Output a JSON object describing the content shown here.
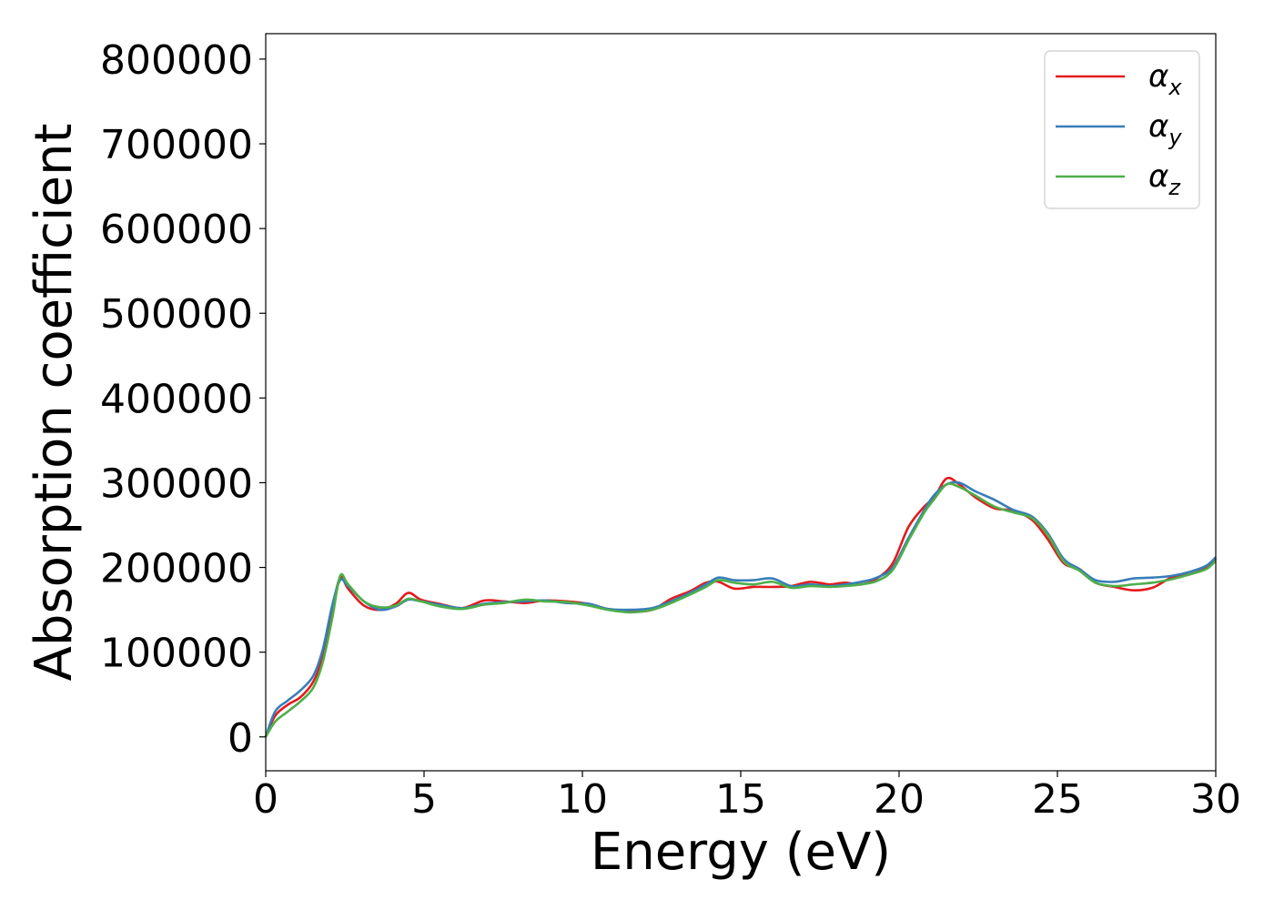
{
  "chart_data": {
    "type": "line",
    "xlabel": "Energy (eV)",
    "ylabel": "Absorption coefficient",
    "xlim": [
      0,
      30
    ],
    "ylim": [
      -40000,
      830000
    ],
    "x_ticks": [
      0,
      5,
      10,
      15,
      20,
      25,
      30
    ],
    "y_ticks": [
      0,
      100000,
      200000,
      300000,
      400000,
      500000,
      600000,
      700000,
      800000
    ],
    "grid": false,
    "legend_position": "top-right",
    "series": [
      {
        "name": "α",
        "subscript": "x",
        "color": "#e41a1c",
        "points": [
          [
            0,
            0
          ],
          [
            0.3,
            25000
          ],
          [
            0.7,
            38000
          ],
          [
            1.1,
            47000
          ],
          [
            1.5,
            65000
          ],
          [
            1.8,
            95000
          ],
          [
            2.1,
            150000
          ],
          [
            2.35,
            188000
          ],
          [
            2.6,
            175000
          ],
          [
            3.1,
            155000
          ],
          [
            3.6,
            150000
          ],
          [
            4.1,
            157000
          ],
          [
            4.5,
            170000
          ],
          [
            4.9,
            162000
          ],
          [
            5.5,
            157000
          ],
          [
            6.2,
            152000
          ],
          [
            6.9,
            161000
          ],
          [
            7.5,
            160000
          ],
          [
            8.2,
            158000
          ],
          [
            8.8,
            161000
          ],
          [
            9.5,
            160000
          ],
          [
            10.2,
            157000
          ],
          [
            10.8,
            151000
          ],
          [
            11.5,
            148000
          ],
          [
            12.2,
            150000
          ],
          [
            12.8,
            163000
          ],
          [
            13.4,
            172000
          ],
          [
            13.9,
            182000
          ],
          [
            14.3,
            183000
          ],
          [
            14.8,
            175000
          ],
          [
            15.4,
            177000
          ],
          [
            16.0,
            177000
          ],
          [
            16.6,
            178000
          ],
          [
            17.2,
            183000
          ],
          [
            17.8,
            180000
          ],
          [
            18.3,
            182000
          ],
          [
            18.8,
            180000
          ],
          [
            19.3,
            187000
          ],
          [
            19.8,
            205000
          ],
          [
            20.3,
            248000
          ],
          [
            20.8,
            272000
          ],
          [
            21.1,
            282000
          ],
          [
            21.5,
            305000
          ],
          [
            21.9,
            298000
          ],
          [
            22.4,
            283000
          ],
          [
            23.0,
            270000
          ],
          [
            23.6,
            267000
          ],
          [
            24.2,
            256000
          ],
          [
            24.7,
            233000
          ],
          [
            25.2,
            205000
          ],
          [
            25.7,
            198000
          ],
          [
            26.2,
            182000
          ],
          [
            26.8,
            177000
          ],
          [
            27.4,
            173000
          ],
          [
            28.0,
            176000
          ],
          [
            28.6,
            188000
          ],
          [
            29.2,
            192000
          ],
          [
            29.7,
            200000
          ],
          [
            30,
            211000
          ]
        ]
      },
      {
        "name": "α",
        "subscript": "y",
        "color": "#377eb8",
        "points": [
          [
            0,
            0
          ],
          [
            0.3,
            30000
          ],
          [
            0.7,
            43000
          ],
          [
            1.1,
            55000
          ],
          [
            1.5,
            72000
          ],
          [
            1.8,
            103000
          ],
          [
            2.1,
            155000
          ],
          [
            2.35,
            185000
          ],
          [
            2.6,
            178000
          ],
          [
            3.1,
            160000
          ],
          [
            3.6,
            150000
          ],
          [
            4.1,
            154000
          ],
          [
            4.5,
            162000
          ],
          [
            4.9,
            160000
          ],
          [
            5.5,
            156000
          ],
          [
            6.2,
            152000
          ],
          [
            6.9,
            157000
          ],
          [
            7.5,
            159000
          ],
          [
            8.2,
            160000
          ],
          [
            8.8,
            161000
          ],
          [
            9.5,
            158000
          ],
          [
            10.2,
            157000
          ],
          [
            10.8,
            151000
          ],
          [
            11.5,
            150000
          ],
          [
            12.2,
            152000
          ],
          [
            12.8,
            160000
          ],
          [
            13.4,
            170000
          ],
          [
            13.9,
            180000
          ],
          [
            14.3,
            188000
          ],
          [
            14.8,
            185000
          ],
          [
            15.4,
            185000
          ],
          [
            16.0,
            187000
          ],
          [
            16.6,
            178000
          ],
          [
            17.2,
            180000
          ],
          [
            17.8,
            178000
          ],
          [
            18.3,
            180000
          ],
          [
            18.8,
            183000
          ],
          [
            19.3,
            188000
          ],
          [
            19.8,
            200000
          ],
          [
            20.3,
            235000
          ],
          [
            20.8,
            268000
          ],
          [
            21.1,
            285000
          ],
          [
            21.5,
            298000
          ],
          [
            21.9,
            300000
          ],
          [
            22.4,
            290000
          ],
          [
            23.0,
            280000
          ],
          [
            23.6,
            268000
          ],
          [
            24.2,
            260000
          ],
          [
            24.7,
            240000
          ],
          [
            25.2,
            210000
          ],
          [
            25.7,
            198000
          ],
          [
            26.2,
            185000
          ],
          [
            26.8,
            183000
          ],
          [
            27.4,
            187000
          ],
          [
            28.0,
            188000
          ],
          [
            28.6,
            190000
          ],
          [
            29.2,
            195000
          ],
          [
            29.7,
            202000
          ],
          [
            30,
            212000
          ]
        ]
      },
      {
        "name": "α",
        "subscript": "z",
        "color": "#4daf4a",
        "points": [
          [
            0,
            0
          ],
          [
            0.3,
            18000
          ],
          [
            0.7,
            30000
          ],
          [
            1.1,
            42000
          ],
          [
            1.5,
            58000
          ],
          [
            1.8,
            88000
          ],
          [
            2.1,
            140000
          ],
          [
            2.35,
            190000
          ],
          [
            2.6,
            180000
          ],
          [
            3.1,
            160000
          ],
          [
            3.6,
            153000
          ],
          [
            4.1,
            155000
          ],
          [
            4.5,
            163000
          ],
          [
            4.9,
            160000
          ],
          [
            5.5,
            154000
          ],
          [
            6.2,
            151000
          ],
          [
            6.9,
            156000
          ],
          [
            7.5,
            158000
          ],
          [
            8.2,
            162000
          ],
          [
            8.8,
            160000
          ],
          [
            9.5,
            159000
          ],
          [
            10.2,
            155000
          ],
          [
            10.8,
            150000
          ],
          [
            11.5,
            147000
          ],
          [
            12.2,
            150000
          ],
          [
            12.8,
            158000
          ],
          [
            13.4,
            168000
          ],
          [
            13.9,
            177000
          ],
          [
            14.3,
            185000
          ],
          [
            14.8,
            182000
          ],
          [
            15.4,
            180000
          ],
          [
            16.0,
            183000
          ],
          [
            16.6,
            176000
          ],
          [
            17.2,
            178000
          ],
          [
            17.8,
            177000
          ],
          [
            18.3,
            178000
          ],
          [
            18.8,
            180000
          ],
          [
            19.3,
            184000
          ],
          [
            19.8,
            197000
          ],
          [
            20.3,
            232000
          ],
          [
            20.8,
            265000
          ],
          [
            21.1,
            280000
          ],
          [
            21.5,
            298000
          ],
          [
            21.9,
            295000
          ],
          [
            22.4,
            285000
          ],
          [
            23.0,
            272000
          ],
          [
            23.6,
            265000
          ],
          [
            24.2,
            258000
          ],
          [
            24.7,
            238000
          ],
          [
            25.2,
            207000
          ],
          [
            25.7,
            196000
          ],
          [
            26.2,
            182000
          ],
          [
            26.8,
            178000
          ],
          [
            27.4,
            180000
          ],
          [
            28.0,
            182000
          ],
          [
            28.6,
            186000
          ],
          [
            29.2,
            192000
          ],
          [
            29.7,
            198000
          ],
          [
            30,
            208000
          ]
        ]
      }
    ]
  }
}
